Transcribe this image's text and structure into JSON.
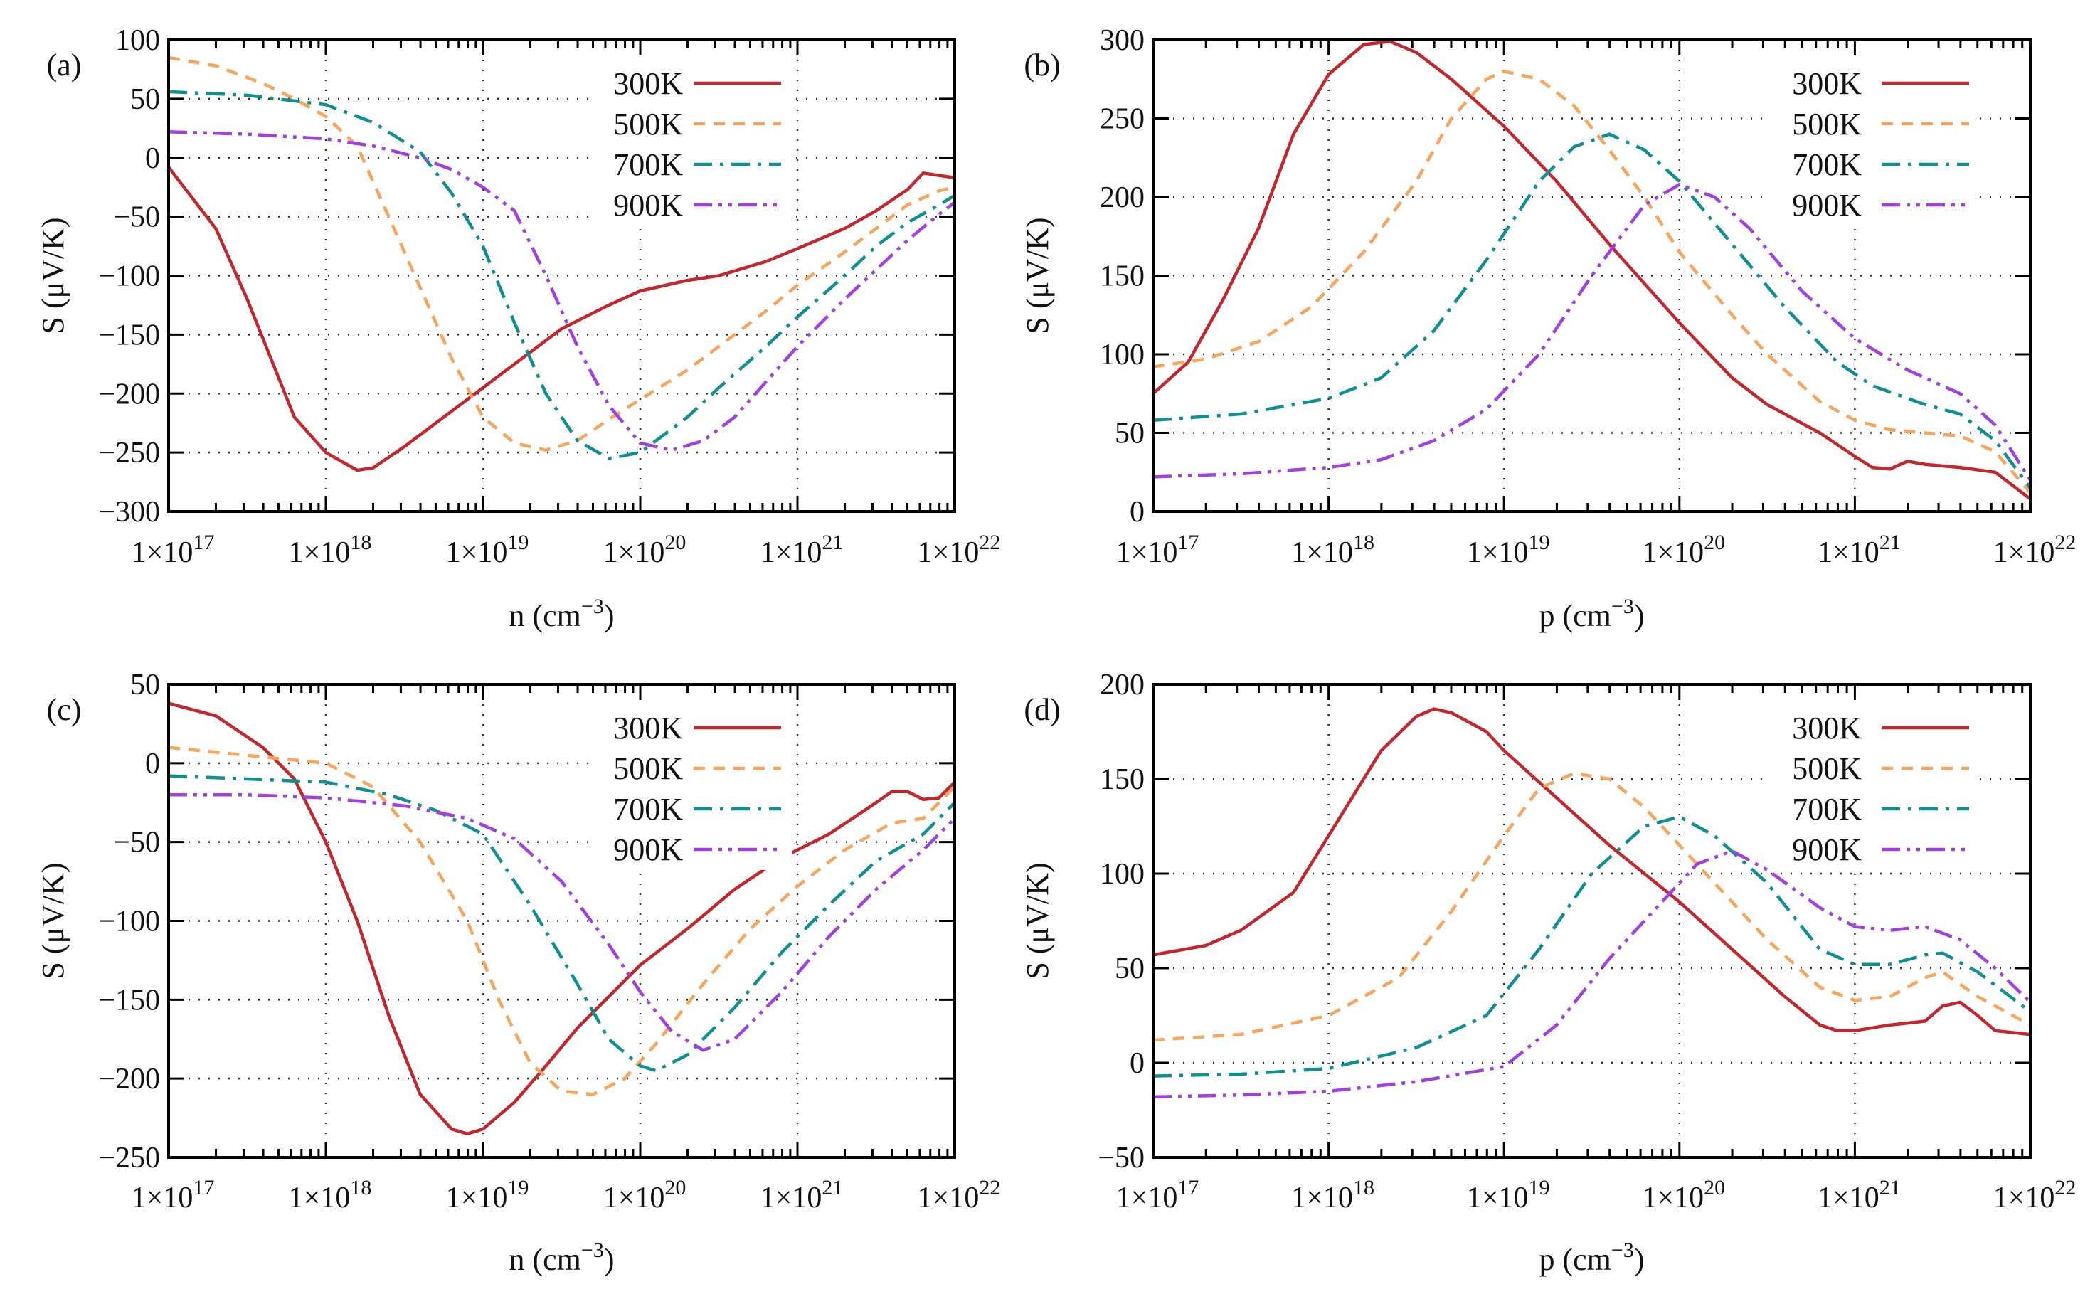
{
  "colors": {
    "300K": "#c1272d",
    "500K": "#f7a55c",
    "700K": "#0f8f8f",
    "900K": "#a23fe0"
  },
  "chart_data": [
    {
      "type": "line",
      "panel": "(a)",
      "xlabel": {
        "text": "n (cm",
        "sup": "−3",
        "close": ")"
      },
      "ylabel": "S (μV/K)",
      "xscale": "log",
      "x_note": "x values given as log10 of carrier concentration (cm^-3)",
      "xlim_log10": [
        17,
        22
      ],
      "ylim": [
        -300,
        100
      ],
      "yticks": [
        -300,
        -250,
        -200,
        -150,
        -100,
        -50,
        0,
        50,
        100
      ],
      "grid": true,
      "legend_position": "top-right",
      "series": [
        {
          "name": "300K",
          "x": [
            17,
            17.3,
            17.5,
            17.8,
            18,
            18.2,
            18.3,
            18.5,
            18.8,
            19,
            19.3,
            19.5,
            19.8,
            20,
            20.3,
            20.5,
            20.8,
            21,
            21.3,
            21.5,
            21.7,
            21.8,
            21.9,
            22
          ],
          "y": [
            -8,
            -60,
            -120,
            -220,
            -250,
            -265,
            -263,
            -245,
            -215,
            -195,
            -165,
            -145,
            -125,
            -113,
            -104,
            -100,
            -88,
            -77,
            -60,
            -45,
            -27,
            -13,
            -15,
            -17
          ]
        },
        {
          "name": "500K",
          "x": [
            17,
            17.3,
            17.6,
            17.8,
            18,
            18.2,
            18.4,
            18.6,
            18.8,
            19,
            19.2,
            19.4,
            19.6,
            19.8,
            20,
            20.3,
            20.5,
            20.8,
            21,
            21.3,
            21.5,
            21.7,
            21.9,
            22
          ],
          "y": [
            85,
            78,
            63,
            50,
            35,
            10,
            -50,
            -110,
            -170,
            -220,
            -242,
            -248,
            -240,
            -222,
            -205,
            -180,
            -160,
            -130,
            -108,
            -80,
            -60,
            -40,
            -28,
            -25
          ]
        },
        {
          "name": "700K",
          "x": [
            17,
            17.5,
            18,
            18.3,
            18.6,
            18.8,
            19,
            19.2,
            19.4,
            19.6,
            19.8,
            20,
            20.3,
            20.5,
            20.8,
            21,
            21.3,
            21.5,
            21.7,
            21.9,
            22
          ],
          "y": [
            56,
            53,
            45,
            30,
            5,
            -30,
            -75,
            -140,
            -200,
            -240,
            -255,
            -250,
            -220,
            -195,
            -160,
            -135,
            -100,
            -75,
            -55,
            -40,
            -32
          ]
        },
        {
          "name": "900K",
          "x": [
            17,
            17.5,
            18,
            18.3,
            18.6,
            18.8,
            19,
            19.2,
            19.4,
            19.6,
            19.8,
            20,
            20.2,
            20.4,
            20.6,
            20.8,
            21,
            21.3,
            21.5,
            21.7,
            21.9,
            22
          ],
          "y": [
            22,
            20,
            16,
            10,
            0,
            -10,
            -25,
            -45,
            -100,
            -160,
            -210,
            -242,
            -248,
            -240,
            -220,
            -190,
            -160,
            -120,
            -95,
            -70,
            -48,
            -38
          ]
        }
      ]
    },
    {
      "type": "line",
      "panel": "(b)",
      "xlabel": {
        "text": "p (cm",
        "sup": "−3",
        "close": ")"
      },
      "ylabel": "S (μV/K)",
      "xscale": "log",
      "xlim_log10": [
        17,
        22
      ],
      "ylim": [
        0,
        300
      ],
      "yticks": [
        0,
        50,
        100,
        150,
        200,
        250,
        300
      ],
      "grid": true,
      "legend_position": "top-right",
      "series": [
        {
          "name": "300K",
          "x": [
            17,
            17.2,
            17.4,
            17.6,
            17.8,
            18,
            18.2,
            18.35,
            18.5,
            18.7,
            19,
            19.3,
            19.6,
            20,
            20.3,
            20.5,
            20.8,
            21,
            21.1,
            21.2,
            21.3,
            21.4,
            21.6,
            21.8,
            22
          ],
          "y": [
            75,
            95,
            135,
            180,
            240,
            278,
            297,
            299,
            292,
            275,
            245,
            210,
            170,
            120,
            85,
            68,
            50,
            35,
            28,
            27,
            32,
            30,
            28,
            25,
            8
          ]
        },
        {
          "name": "500K",
          "x": [
            17,
            17.3,
            17.6,
            17.9,
            18.2,
            18.5,
            18.7,
            18.9,
            19,
            19.2,
            19.4,
            19.6,
            19.8,
            20,
            20.3,
            20.5,
            20.8,
            21,
            21.2,
            21.4,
            21.6,
            21.8,
            22
          ],
          "y": [
            92,
            97,
            108,
            130,
            165,
            210,
            250,
            275,
            280,
            275,
            258,
            230,
            200,
            165,
            125,
            100,
            70,
            58,
            52,
            50,
            48,
            38,
            12
          ]
        },
        {
          "name": "700K",
          "x": [
            17,
            17.5,
            18,
            18.3,
            18.6,
            18.9,
            19.2,
            19.4,
            19.6,
            19.8,
            20,
            20.3,
            20.6,
            20.9,
            21.1,
            21.4,
            21.6,
            21.8,
            22
          ],
          "y": [
            58,
            62,
            72,
            85,
            115,
            160,
            210,
            232,
            240,
            230,
            210,
            170,
            130,
            95,
            80,
            68,
            62,
            45,
            15
          ]
        },
        {
          "name": "900K",
          "x": [
            17,
            17.5,
            18,
            18.3,
            18.6,
            18.9,
            19.2,
            19.5,
            19.8,
            20,
            20.2,
            20.4,
            20.7,
            21,
            21.3,
            21.6,
            21.8,
            22
          ],
          "y": [
            22,
            24,
            28,
            33,
            45,
            65,
            100,
            150,
            195,
            208,
            200,
            180,
            140,
            110,
            90,
            75,
            55,
            20
          ]
        }
      ]
    },
    {
      "type": "line",
      "panel": "(c)",
      "xlabel": {
        "text": "n (cm",
        "sup": "−3",
        "close": ")"
      },
      "ylabel": "S (μV/K)",
      "xscale": "log",
      "xlim_log10": [
        17,
        22
      ],
      "ylim": [
        -250,
        50
      ],
      "yticks": [
        -250,
        -200,
        -150,
        -100,
        -50,
        0,
        50
      ],
      "grid": true,
      "legend_position": "top-right",
      "series": [
        {
          "name": "300K",
          "x": [
            17,
            17.3,
            17.6,
            17.8,
            18,
            18.2,
            18.4,
            18.6,
            18.8,
            18.9,
            19,
            19.2,
            19.4,
            19.6,
            19.8,
            20,
            20.3,
            20.6,
            20.9,
            21.2,
            21.5,
            21.6,
            21.7,
            21.8,
            21.9,
            22
          ],
          "y": [
            38,
            30,
            10,
            -10,
            -50,
            -100,
            -160,
            -210,
            -232,
            -235,
            -232,
            -215,
            -192,
            -168,
            -148,
            -128,
            -105,
            -80,
            -60,
            -45,
            -25,
            -18,
            -18,
            -23,
            -22,
            -12
          ]
        },
        {
          "name": "500K",
          "x": [
            17,
            17.5,
            18,
            18.3,
            18.6,
            18.9,
            19.1,
            19.3,
            19.5,
            19.7,
            19.9,
            20.1,
            20.4,
            20.7,
            21,
            21.3,
            21.6,
            21.8,
            22
          ],
          "y": [
            10,
            5,
            0,
            -15,
            -50,
            -100,
            -150,
            -190,
            -208,
            -210,
            -200,
            -178,
            -140,
            -105,
            -78,
            -55,
            -38,
            -35,
            -15
          ]
        },
        {
          "name": "700K",
          "x": [
            17,
            17.5,
            18,
            18.4,
            18.7,
            19,
            19.3,
            19.6,
            19.8,
            20,
            20.1,
            20.3,
            20.6,
            20.9,
            21.2,
            21.5,
            21.8,
            22
          ],
          "y": [
            -8,
            -10,
            -12,
            -20,
            -30,
            -45,
            -90,
            -140,
            -175,
            -192,
            -195,
            -185,
            -155,
            -120,
            -90,
            -62,
            -45,
            -25
          ]
        },
        {
          "name": "900K",
          "x": [
            17,
            17.5,
            18,
            18.5,
            18.9,
            19.2,
            19.5,
            19.8,
            20,
            20.2,
            20.4,
            20.6,
            20.9,
            21.2,
            21.5,
            21.8,
            22
          ],
          "y": [
            -20,
            -20,
            -22,
            -27,
            -35,
            -48,
            -75,
            -115,
            -145,
            -170,
            -182,
            -175,
            -145,
            -110,
            -80,
            -55,
            -35
          ]
        }
      ]
    },
    {
      "type": "line",
      "panel": "(d)",
      "xlabel": {
        "text": "p (cm",
        "sup": "−3",
        "close": ")"
      },
      "ylabel": "S (μV/K)",
      "xscale": "log",
      "xlim_log10": [
        17,
        22
      ],
      "ylim": [
        -50,
        200
      ],
      "yticks": [
        -50,
        0,
        50,
        100,
        150,
        200
      ],
      "grid": true,
      "legend_position": "top-right",
      "series": [
        {
          "name": "300K",
          "x": [
            17,
            17.3,
            17.5,
            17.8,
            18,
            18.3,
            18.5,
            18.6,
            18.7,
            18.9,
            19,
            19.3,
            19.6,
            20,
            20.3,
            20.6,
            20.8,
            20.9,
            21,
            21.2,
            21.4,
            21.5,
            21.6,
            21.7,
            21.8,
            22
          ],
          "y": [
            57,
            62,
            70,
            90,
            120,
            165,
            183,
            187,
            185,
            175,
            165,
            140,
            115,
            85,
            60,
            35,
            20,
            17,
            17,
            20,
            22,
            30,
            32,
            25,
            17,
            15
          ]
        },
        {
          "name": "500K",
          "x": [
            17,
            17.5,
            18,
            18.4,
            18.7,
            19,
            19.2,
            19.4,
            19.6,
            19.8,
            20,
            20.2,
            20.5,
            20.8,
            21,
            21.2,
            21.4,
            21.5,
            21.7,
            22
          ],
          "y": [
            12,
            15,
            25,
            45,
            80,
            120,
            145,
            153,
            150,
            135,
            115,
            95,
            65,
            40,
            33,
            35,
            45,
            48,
            35,
            20
          ]
        },
        {
          "name": "700K",
          "x": [
            17,
            17.5,
            18,
            18.5,
            18.9,
            19.2,
            19.5,
            19.8,
            20,
            20.2,
            20.5,
            20.8,
            21,
            21.2,
            21.4,
            21.5,
            21.7,
            22
          ],
          "y": [
            -7,
            -6,
            -3,
            8,
            25,
            60,
            100,
            125,
            130,
            120,
            95,
            60,
            52,
            52,
            57,
            58,
            48,
            27
          ]
        },
        {
          "name": "900K",
          "x": [
            17,
            17.5,
            18,
            18.5,
            19,
            19.3,
            19.6,
            19.9,
            20.1,
            20.3,
            20.5,
            20.8,
            21,
            21.2,
            21.4,
            21.6,
            21.8,
            22
          ],
          "y": [
            -18,
            -17,
            -15,
            -10,
            -2,
            20,
            55,
            85,
            105,
            112,
            102,
            82,
            72,
            70,
            72,
            65,
            50,
            32
          ]
        }
      ]
    }
  ],
  "xtick_labels": [
    {
      "base": "1×10",
      "exp": "17"
    },
    {
      "base": "1×10",
      "exp": "18"
    },
    {
      "base": "1×10",
      "exp": "19"
    },
    {
      "base": "1×10",
      "exp": "20"
    },
    {
      "base": "1×10",
      "exp": "21"
    },
    {
      "base": "1×10",
      "exp": "22"
    }
  ]
}
